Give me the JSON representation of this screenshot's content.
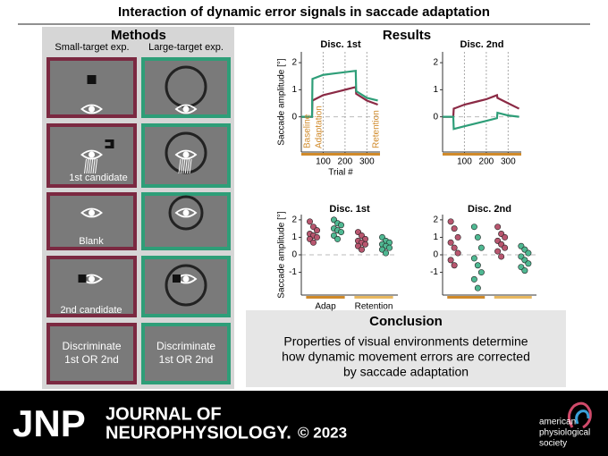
{
  "title": "Interaction of dynamic error signals in saccade adaptation",
  "methods": {
    "title": "Methods",
    "columns": [
      "Small-target exp.",
      "Large-target exp."
    ],
    "steps": [
      "1st candidate",
      "Blank",
      "2nd candidate"
    ],
    "final": [
      [
        "Discriminate",
        "1st OR 2nd"
      ],
      [
        "Discriminate",
        "1st OR 2nd"
      ]
    ]
  },
  "results": {
    "title": "Results",
    "top_panels": [
      {
        "title": "Disc. 1st",
        "ylabel": "Saccade amplitude [°]",
        "xlabel": "Trial #",
        "xlim": [
          0,
          360
        ],
        "ylim": [
          -1.3,
          2.4
        ],
        "xticks": [
          100,
          200,
          300
        ],
        "yticks": [
          0,
          1,
          2
        ],
        "annotations": [
          "Baseline",
          "Adaptation",
          "Retention"
        ],
        "series": [
          {
            "color": "#8b2a45",
            "x": [
              0,
              25,
              49,
              51,
              100,
              150,
              200,
              249,
              251,
              300,
              350
            ],
            "values": [
              0,
              0,
              0,
              0.6,
              0.8,
              0.9,
              1.0,
              1.1,
              0.85,
              0.6,
              0.45
            ]
          },
          {
            "color": "#2e9e78",
            "x": [
              0,
              25,
              49,
              51,
              100,
              150,
              200,
              249,
              251,
              300,
              350
            ],
            "values": [
              0,
              0,
              0,
              1.4,
              1.55,
              1.6,
              1.65,
              1.7,
              0.95,
              0.7,
              0.6
            ]
          }
        ]
      },
      {
        "title": "Disc. 2nd",
        "xlim": [
          0,
          360
        ],
        "ylim": [
          -1.3,
          2.4
        ],
        "xticks": [
          100,
          200,
          300
        ],
        "yticks": [
          0,
          1,
          2
        ],
        "series": [
          {
            "color": "#8b2a45",
            "x": [
              0,
              25,
              49,
              51,
              100,
              150,
              200,
              249,
              251,
              300,
              350
            ],
            "values": [
              0,
              0,
              0,
              0.3,
              0.45,
              0.55,
              0.65,
              0.8,
              0.7,
              0.5,
              0.3
            ]
          },
          {
            "color": "#2e9e78",
            "x": [
              0,
              25,
              49,
              51,
              100,
              150,
              200,
              249,
              251,
              300,
              350
            ],
            "values": [
              0,
              0,
              0,
              -0.45,
              -0.35,
              -0.25,
              -0.15,
              -0.05,
              0.15,
              0.05,
              0
            ]
          }
        ]
      }
    ],
    "bottom_panels": [
      {
        "title": "Disc. 1st",
        "ylabel": "Saccade amplitude [°]",
        "ylim": [
          -2.3,
          2.3
        ],
        "yticks": [
          -1,
          0,
          1,
          2
        ],
        "categories": [
          "Adap",
          "Retention"
        ],
        "groups": [
          {
            "color": "#b8566f",
            "values": [
              1.9,
              1.6,
              1.4,
              1.2,
              1.1,
              1.0,
              0.9,
              0.7
            ]
          },
          {
            "color": "#4fb892",
            "values": [
              2.0,
              1.8,
              1.7,
              1.5,
              1.4,
              1.3,
              1.1,
              0.9
            ]
          },
          {
            "color": "#b8566f",
            "values": [
              1.3,
              1.1,
              0.9,
              0.8,
              0.7,
              0.6,
              0.5,
              0.3
            ]
          },
          {
            "color": "#4fb892",
            "values": [
              1.0,
              0.8,
              0.7,
              0.6,
              0.5,
              0.4,
              0.3,
              0.1
            ]
          }
        ]
      },
      {
        "title": "Disc. 2nd",
        "ylim": [
          -2.3,
          2.3
        ],
        "yticks": [
          -1,
          0,
          1,
          2
        ],
        "groups": [
          {
            "color": "#b8566f",
            "values": [
              1.9,
              1.5,
              1.0,
              0.7,
              0.4,
              0.1,
              -0.3,
              -0.6
            ]
          },
          {
            "color": "#4fb892",
            "values": [
              1.6,
              1.0,
              0.4,
              -0.2,
              -0.6,
              -1.0,
              -1.4,
              -1.9
            ]
          },
          {
            "color": "#b8566f",
            "values": [
              1.6,
              1.2,
              1.0,
              0.8,
              0.6,
              0.4,
              0.2,
              -0.1
            ]
          },
          {
            "color": "#4fb892",
            "values": [
              0.5,
              0.3,
              0.1,
              -0.1,
              -0.3,
              -0.5,
              -0.7,
              -0.9
            ]
          }
        ]
      }
    ]
  },
  "conclusion": {
    "title": "Conclusion",
    "lines": [
      "Properties of visual environments determine",
      "how dynamic movement errors are corrected",
      "by saccade adaptation"
    ]
  },
  "footer": {
    "short": "JNP",
    "journal": [
      "JOURNAL OF",
      "NEUROPHYSIOLOGY."
    ],
    "year": "© 2023",
    "society": [
      "american",
      "physiological",
      "society"
    ]
  }
}
